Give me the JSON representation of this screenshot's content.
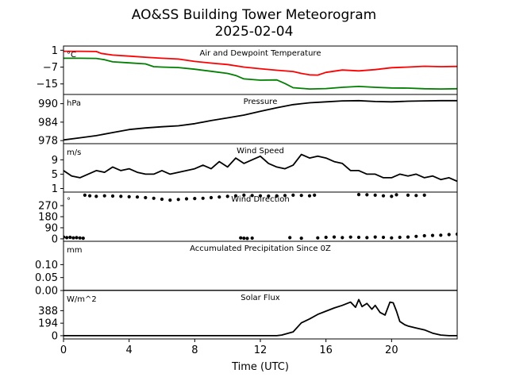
{
  "figure": {
    "title_line1": "AO&SS Building Tower Meteorogram",
    "title_line2": "2025-02-04",
    "xlabel": "Time (UTC)",
    "xticks": [
      0,
      4,
      8,
      12,
      16,
      20
    ],
    "xlim": [
      0,
      24
    ]
  },
  "chart_data": [
    {
      "type": "line",
      "title": "Air and Dewpoint Temperature",
      "unit": "°C",
      "ylim": [
        -20,
        3
      ],
      "yticks": [
        1,
        -7,
        -15
      ],
      "series": [
        {
          "color": "#ff0000",
          "x": [
            0,
            1,
            2,
            2.3,
            3,
            4,
            5,
            6,
            7,
            8,
            9,
            10,
            11,
            12,
            13,
            14,
            14.5,
            15,
            15.5,
            16,
            17,
            18,
            19,
            20,
            21,
            22,
            23,
            24
          ],
          "y": [
            0.5,
            0.5,
            0.4,
            -0.5,
            -1.3,
            -1.8,
            -2.3,
            -2.8,
            -3.2,
            -4.3,
            -5.1,
            -5.8,
            -7.0,
            -7.8,
            -8.5,
            -9.1,
            -10.0,
            -10.7,
            -10.8,
            -9.5,
            -8.4,
            -8.8,
            -8.2,
            -7.3,
            -7.0,
            -6.6,
            -6.8,
            -6.7
          ]
        },
        {
          "color": "#008000",
          "x": [
            0,
            1,
            2,
            2.5,
            3,
            4,
            5,
            5.5,
            6,
            7,
            8,
            9,
            10,
            10.5,
            11,
            12,
            13,
            13.5,
            14,
            15,
            16,
            17,
            18,
            19,
            20,
            21,
            22,
            23,
            24
          ],
          "y": [
            -2.8,
            -2.8,
            -2.9,
            -3.5,
            -4.5,
            -5.0,
            -5.5,
            -6.8,
            -7.0,
            -7.2,
            -8.0,
            -9.0,
            -10.0,
            -11.0,
            -12.6,
            -13.2,
            -13.1,
            -14.8,
            -16.8,
            -17.4,
            -17.2,
            -16.6,
            -16.2,
            -16.6,
            -16.9,
            -17.0,
            -17.3,
            -17.4,
            -17.3
          ]
        }
      ]
    },
    {
      "type": "line",
      "title": "Pressure",
      "unit": "hPa",
      "ylim": [
        977,
        993
      ],
      "yticks": [
        990,
        984,
        978
      ],
      "series": [
        {
          "color": "#000000",
          "x": [
            0,
            1,
            2,
            3,
            4,
            5,
            6,
            7,
            8,
            9,
            10,
            11,
            12,
            13,
            14,
            15,
            16,
            17,
            18,
            19,
            20,
            21,
            22,
            23,
            24
          ],
          "y": [
            978.2,
            978.9,
            979.6,
            980.6,
            981.6,
            982.1,
            982.5,
            982.8,
            983.5,
            984.5,
            985.4,
            986.3,
            987.5,
            988.7,
            989.7,
            990.3,
            990.6,
            990.9,
            991.0,
            990.7,
            990.6,
            990.8,
            990.9,
            991.0,
            991.0
          ]
        }
      ]
    },
    {
      "type": "line",
      "title": "Wind Speed",
      "unit": "m/s",
      "ylim": [
        0,
        13.5
      ],
      "yticks": [
        9,
        5,
        1
      ],
      "series": [
        {
          "color": "#000000",
          "x": [
            0,
            0.5,
            1,
            1.5,
            2,
            2.5,
            3,
            3.5,
            4,
            4.5,
            5,
            5.5,
            6,
            6.5,
            7,
            7.5,
            8,
            8.5,
            9,
            9.5,
            10,
            10.5,
            11,
            11.5,
            12,
            12.5,
            13,
            13.5,
            14,
            14.5,
            15,
            15.5,
            16,
            16.5,
            17,
            17.5,
            18,
            18.5,
            19,
            19.5,
            20,
            20.5,
            21,
            21.5,
            22,
            22.5,
            23,
            23.5,
            24
          ],
          "y": [
            6,
            4.5,
            4,
            5,
            6,
            5.5,
            7,
            6,
            6.5,
            5.5,
            5,
            5,
            6,
            5,
            5.5,
            6,
            6.5,
            7.5,
            6.5,
            8.5,
            7,
            9.5,
            8,
            9,
            10,
            8,
            7,
            6.5,
            7.5,
            10.5,
            9.5,
            10,
            9.5,
            8.5,
            8,
            6,
            6,
            5,
            5,
            4,
            4,
            5,
            4.5,
            5,
            4,
            4.5,
            3.5,
            4,
            3
          ]
        }
      ]
    },
    {
      "type": "scatter",
      "title": "Wind Direction",
      "unit": "°",
      "ylim": [
        -20,
        380
      ],
      "yticks": [
        270,
        180,
        90,
        0
      ],
      "points": [
        {
          "x": [
            0.0,
            0.2,
            0.4,
            0.6,
            0.8,
            1.0,
            1.2
          ],
          "y": [
            15,
            10,
            12,
            8,
            10,
            7,
            5
          ]
        },
        {
          "x": [
            1.3,
            1.6,
            2.0,
            2.5,
            3.0,
            3.5,
            4.0,
            4.5,
            5.0,
            5.5,
            6.0,
            6.5,
            7.0,
            7.5,
            8.0,
            8.5,
            9.0,
            9.5,
            10.0,
            10.5
          ],
          "y": [
            355,
            350,
            345,
            350,
            348,
            345,
            342,
            340,
            335,
            330,
            322,
            315,
            320,
            325,
            328,
            330,
            335,
            340,
            345,
            350
          ]
        },
        {
          "x": [
            11.0,
            11.5,
            12.0,
            12.5,
            13.0,
            13.5,
            14.0,
            14.5,
            15.0,
            15.3
          ],
          "y": [
            355,
            352,
            350,
            348,
            350,
            352,
            355,
            353,
            350,
            355
          ]
        },
        {
          "x": [
            10.8,
            11.0,
            11.2,
            11.5,
            13.8,
            14.5
          ],
          "y": [
            8,
            5,
            3,
            6,
            10,
            5
          ]
        },
        {
          "x": [
            15.5,
            16.0,
            16.5,
            17.0,
            17.5,
            18.0,
            18.5,
            19.0,
            19.5,
            20.0,
            20.5,
            21.0,
            21.5,
            22.0,
            22.5,
            23.0,
            23.5,
            24.0
          ],
          "y": [
            8,
            12,
            15,
            10,
            14,
            12,
            10,
            15,
            12,
            8,
            12,
            15,
            20,
            25,
            28,
            30,
            35,
            38
          ]
        },
        {
          "x": [
            18.0,
            18.5,
            19.0,
            19.5,
            20.0,
            20.3,
            21.0,
            21.5,
            22.0
          ],
          "y": [
            360,
            358,
            355,
            350,
            345,
            358,
            355,
            352,
            355
          ]
        }
      ]
    },
    {
      "type": "line",
      "title": "Accumulated Precipitation Since 0Z",
      "unit": "mm",
      "ylim": [
        0,
        0.19
      ],
      "yticks": [
        0.1,
        0.05,
        0.0
      ],
      "series": [
        {
          "color": "#000000",
          "x": [
            0,
            24
          ],
          "y": [
            0,
            0
          ]
        }
      ]
    },
    {
      "type": "line",
      "title": "Solar Flux",
      "unit": "W/m^2",
      "ylim": [
        -50,
        700
      ],
      "yticks": [
        388,
        194,
        0
      ],
      "series": [
        {
          "color": "#000000",
          "x": [
            0,
            13,
            13.3,
            14,
            14.5,
            15,
            15.5,
            16,
            16.5,
            17,
            17.5,
            17.8,
            18.0,
            18.2,
            18.5,
            18.8,
            19.0,
            19.3,
            19.6,
            19.9,
            20.1,
            20.3,
            20.5,
            20.8,
            21,
            21.5,
            22,
            22.5,
            23,
            23.5,
            24
          ],
          "y": [
            0,
            0,
            10,
            60,
            200,
            260,
            330,
            380,
            430,
            470,
            520,
            440,
            560,
            450,
            500,
            410,
            470,
            360,
            320,
            520,
            510,
            380,
            220,
            170,
            150,
            120,
            90,
            40,
            10,
            0,
            0
          ]
        }
      ]
    }
  ]
}
